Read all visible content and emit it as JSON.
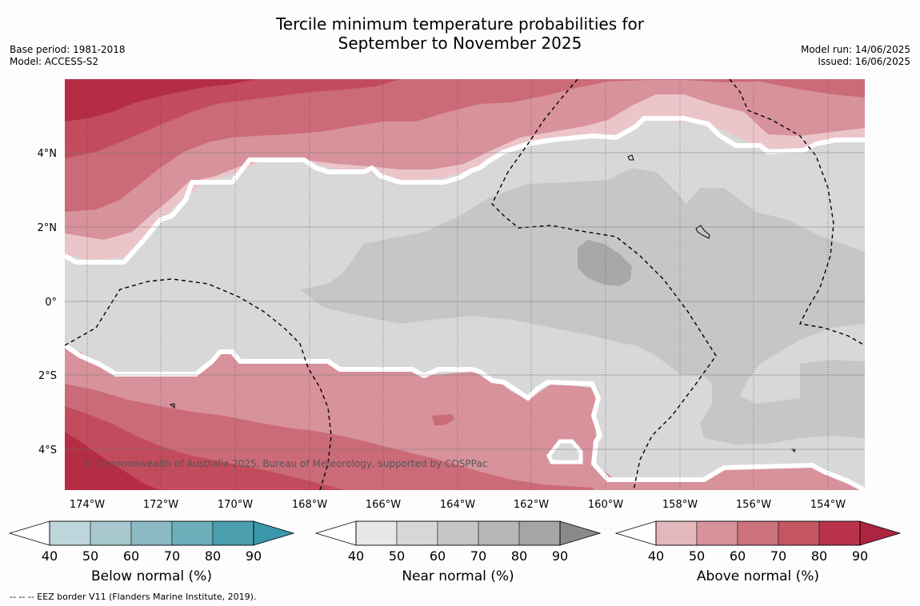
{
  "title": {
    "line1": "Tercile minimum temperature probabilities for",
    "line2": "September to November 2025"
  },
  "meta_left": {
    "base_period": "Base period: 1981-2018",
    "model": "Model: ACCESS-S2"
  },
  "meta_right": {
    "model_run": "Model run: 14/06/2025",
    "issued": "Issued: 16/06/2025"
  },
  "map": {
    "lon_ticks": [
      "174°W",
      "172°W",
      "170°W",
      "168°W",
      "166°W",
      "164°W",
      "162°W",
      "160°W",
      "158°W",
      "156°W",
      "154°W"
    ],
    "lat_ticks": [
      "4°N",
      "2°N",
      "0°",
      "2°S",
      "4°S"
    ],
    "copyright": "© Commonwealth of Australia 2025, Bureau of Meteorology, supported by COSPPac",
    "colors": {
      "near_40": "#d8d8d8",
      "near_50": "#c6c6c6",
      "near_60": "#a8a8a8",
      "above_40": "#ebc5ca",
      "above_50": "#d8929c",
      "above_60": "#cc6b78",
      "above_70": "#c24c5d",
      "above_80": "#b52c45"
    }
  },
  "colorbars": [
    {
      "label": "Below normal (%)",
      "ticks": [
        "40",
        "50",
        "60",
        "70",
        "80",
        "90"
      ],
      "colors": [
        "#bfd6dc",
        "#a6c8ce",
        "#8bb9c4",
        "#6daebb",
        "#4a9eae",
        "#3a97aa"
      ]
    },
    {
      "label": "Near normal (%)",
      "ticks": [
        "40",
        "50",
        "60",
        "70",
        "80",
        "90"
      ],
      "colors": [
        "#e7e7e7",
        "#d7d7d7",
        "#c6c6c6",
        "#b6b6b6",
        "#a5a5a5",
        "#8a8a8a"
      ]
    },
    {
      "label": "Above normal (%)",
      "ticks": [
        "40",
        "50",
        "60",
        "70",
        "80",
        "90"
      ],
      "colors": [
        "#e3b8bd",
        "#d8929c",
        "#cc737e",
        "#c45664",
        "#b9334a",
        "#ad2440"
      ]
    }
  ],
  "footnote": "-- -- -- EEZ border V11 (Flanders Marine Institute, 2019)."
}
